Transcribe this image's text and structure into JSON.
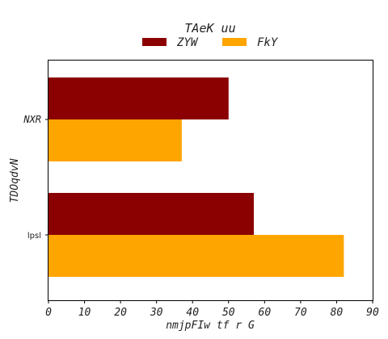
{
  "chart_data": {
    "type": "bar",
    "orientation": "horizontal",
    "title": "TAeK  uu",
    "xlabel": "nmjpFIw tf r G",
    "ylabel": "TDOqdvN",
    "categories": [
      "NXR",
      "lpsl"
    ],
    "series": [
      {
        "name": "ZYW",
        "color": "#8b0000",
        "values": [
          50,
          57
        ]
      },
      {
        "name": "FkY",
        "color": "#ffa500",
        "values": [
          37,
          82
        ]
      }
    ],
    "xlim": [
      0,
      90
    ],
    "xticks": [
      "0",
      "10",
      "20",
      "30",
      "40",
      "50",
      "60",
      "70",
      "80",
      "90"
    ],
    "grid": false,
    "legend_position": "top-center"
  }
}
